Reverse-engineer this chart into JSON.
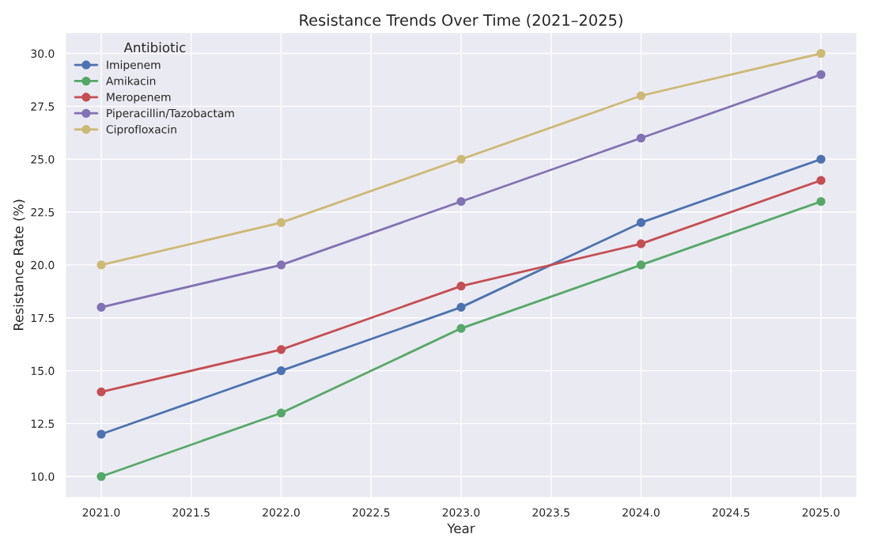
{
  "chart_data": {
    "type": "line",
    "title": "Resistance Trends Over Time (2021–2025)",
    "xlabel": "Year",
    "ylabel": "Resistance Rate (%)",
    "legend_title": "Antibiotic",
    "x": [
      2021,
      2022,
      2023,
      2024,
      2025
    ],
    "series": [
      {
        "name": "Imipenem",
        "color": "#4c72b0",
        "values": [
          12,
          15,
          18,
          22,
          25
        ]
      },
      {
        "name": "Amikacin",
        "color": "#55a868",
        "values": [
          10,
          13,
          17,
          20,
          23
        ]
      },
      {
        "name": "Meropenem",
        "color": "#c44e52",
        "values": [
          14,
          16,
          19,
          21,
          24
        ]
      },
      {
        "name": "Piperacillin/Tazobactam",
        "color": "#8172b3",
        "values": [
          18,
          20,
          23,
          26,
          29
        ]
      },
      {
        "name": "Ciprofloxacin",
        "color": "#ccb974",
        "values": [
          20,
          22,
          25,
          28,
          30
        ]
      }
    ],
    "xlim": [
      2020.8,
      2025.2
    ],
    "ylim": [
      9,
      31
    ],
    "xticks": [
      {
        "value": 2021,
        "label": "2021.0"
      },
      {
        "value": 2021.5,
        "label": "2021.5"
      },
      {
        "value": 2022,
        "label": "2022.0"
      },
      {
        "value": 2022.5,
        "label": "2022.5"
      },
      {
        "value": 2023,
        "label": "2023.0"
      },
      {
        "value": 2023.5,
        "label": "2023.5"
      },
      {
        "value": 2024,
        "label": "2024.0"
      },
      {
        "value": 2024.5,
        "label": "2024.5"
      },
      {
        "value": 2025,
        "label": "2025.0"
      }
    ],
    "yticks": [
      {
        "value": 10,
        "label": "10.0"
      },
      12.5,
      {
        "value": 15,
        "label": "15.0"
      },
      17.5,
      {
        "value": 20,
        "label": "20.0"
      },
      22.5,
      {
        "value": 25,
        "label": "25.0"
      },
      27.5,
      {
        "value": 30,
        "label": "30.0"
      }
    ],
    "grid": true,
    "legend": "top left",
    "marker": "circle",
    "line_style": "solid"
  }
}
